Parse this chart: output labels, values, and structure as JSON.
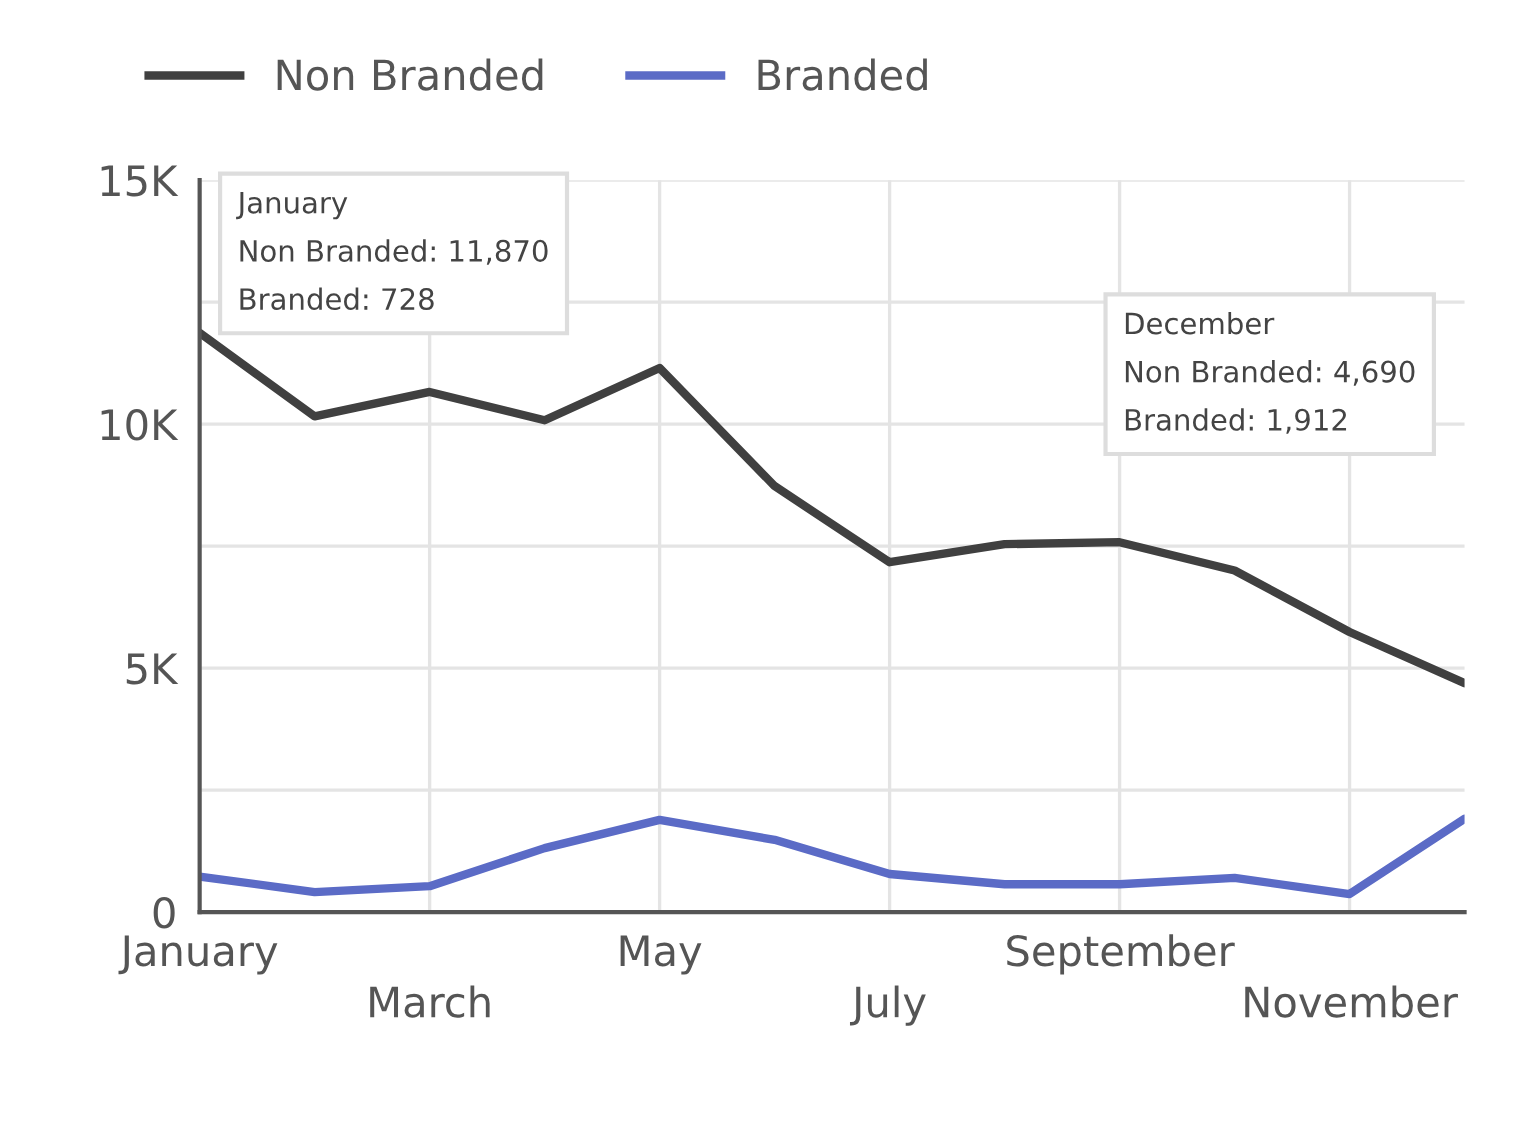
{
  "chart_data": {
    "type": "line",
    "categories": [
      "January",
      null,
      "March",
      null,
      "May",
      null,
      "July",
      null,
      "September",
      null,
      "November",
      null
    ],
    "series": [
      {
        "name": "Non Branded",
        "color": "#404040",
        "values": [
          11870,
          10160,
          10660,
          10080,
          11150,
          8730,
          7170,
          7540,
          7580,
          7000,
          5740,
          4690
        ]
      },
      {
        "name": "Branded",
        "color": "#5b6bc6",
        "values": [
          728,
          410,
          530,
          1310,
          1890,
          1480,
          780,
          570,
          570,
          700,
          370,
          1912
        ]
      }
    ],
    "ylim": [
      0,
      15000
    ],
    "yticks": [
      0,
      {
        "value": 2500,
        "label": null
      },
      {
        "value": 5000,
        "label": "5K"
      },
      {
        "value": 7500,
        "label": null
      },
      {
        "value": 10000,
        "label": "10K"
      },
      {
        "value": 12500,
        "label": null
      },
      {
        "value": 15000,
        "label": "15K"
      }
    ],
    "grid": true,
    "legend": "top left",
    "marker": "none",
    "line_style": "solid",
    "annotations": [
      "January\nNon Branded: 11,870\nBranded: 728",
      "December\nNon Branded: 4,690\nBranded: 1,912"
    ]
  }
}
